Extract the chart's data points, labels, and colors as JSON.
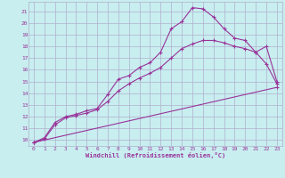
{
  "title": "",
  "xlabel": "Windchill (Refroidissement éolien,°C)",
  "bg_color": "#c8eef0",
  "grid_color": "#b0b0cc",
  "line_color": "#993399",
  "xlim": [
    -0.5,
    23.5
  ],
  "ylim": [
    9.5,
    21.8
  ],
  "xticks": [
    0,
    1,
    2,
    3,
    4,
    5,
    6,
    7,
    8,
    9,
    10,
    11,
    12,
    13,
    14,
    15,
    16,
    17,
    18,
    19,
    20,
    21,
    22,
    23
  ],
  "yticks": [
    10,
    11,
    12,
    13,
    14,
    15,
    16,
    17,
    18,
    19,
    20,
    21
  ],
  "curve1_x": [
    0,
    1,
    2,
    3,
    4,
    5,
    6,
    7,
    8,
    9,
    10,
    11,
    12,
    13,
    14,
    15,
    16,
    17,
    18,
    19,
    20,
    21,
    22,
    23
  ],
  "curve1_y": [
    9.8,
    10.2,
    11.5,
    12.0,
    12.2,
    12.5,
    12.7,
    13.9,
    15.2,
    15.5,
    16.2,
    16.6,
    17.5,
    19.5,
    20.1,
    21.3,
    21.2,
    20.5,
    19.5,
    18.7,
    18.5,
    17.5,
    16.5,
    14.8
  ],
  "curve2_x": [
    0,
    1,
    2,
    3,
    4,
    5,
    6,
    7,
    8,
    9,
    10,
    11,
    12,
    13,
    14,
    15,
    16,
    17,
    18,
    19,
    20,
    21,
    22,
    23
  ],
  "curve2_y": [
    9.8,
    10.1,
    11.3,
    11.9,
    12.1,
    12.3,
    12.6,
    13.3,
    14.2,
    14.8,
    15.3,
    15.7,
    16.2,
    17.0,
    17.8,
    18.2,
    18.5,
    18.5,
    18.3,
    18.0,
    17.8,
    17.5,
    18.0,
    15.0
  ],
  "curve3_x": [
    0,
    23
  ],
  "curve3_y": [
    9.8,
    14.5
  ]
}
